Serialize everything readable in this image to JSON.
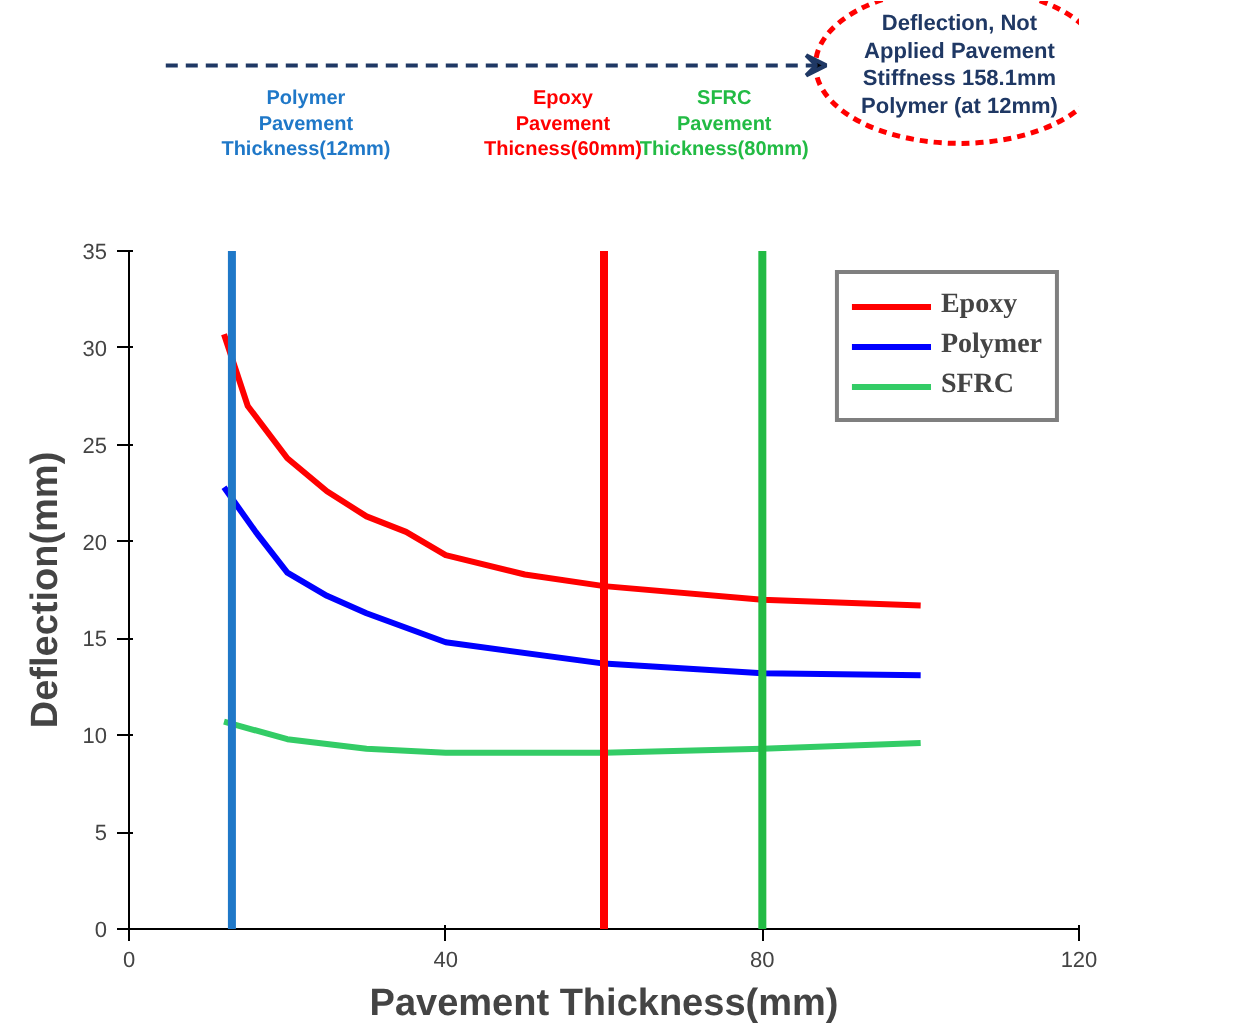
{
  "chart_data": {
    "type": "line",
    "xlabel": "Pavement Thickness(mm)",
    "ylabel": "Deflection(mm)",
    "xlim": [
      0,
      120
    ],
    "xticks": [
      0,
      40,
      80,
      120
    ],
    "ylim": [
      0,
      35
    ],
    "yticks": [
      0,
      5,
      10,
      15,
      20,
      25,
      30,
      35
    ],
    "grid": false,
    "legend": "top right",
    "marker": "none",
    "line_style": "solid",
    "series": [
      {
        "name": "Epoxy",
        "color": "#ff0000",
        "x": [
          12,
          15,
          20,
          25,
          30,
          35,
          40,
          50,
          60,
          80,
          100
        ],
        "values": [
          30.7,
          27.0,
          24.3,
          22.6,
          21.3,
          20.5,
          19.3,
          18.3,
          17.7,
          17.0,
          16.7
        ]
      },
      {
        "name": "Polymer",
        "color": "#0000ff",
        "x": [
          12,
          16,
          20,
          25,
          30,
          40,
          60,
          80,
          100
        ],
        "values": [
          22.8,
          20.5,
          18.4,
          17.2,
          16.3,
          14.8,
          13.7,
          13.2,
          13.1
        ]
      },
      {
        "name": "SFRC",
        "color": "#33cc66",
        "x": [
          12,
          20,
          30,
          40,
          60,
          80,
          100
        ],
        "values": [
          10.7,
          9.8,
          9.3,
          9.1,
          9.1,
          9.3,
          9.6
        ]
      }
    ],
    "ref_lines": [
      {
        "axis": "x",
        "value": 13,
        "label": "Polymer\nPavement\nThickness(12mm)",
        "color": "#1f78c8"
      },
      {
        "axis": "x",
        "value": 60,
        "label": "Epoxy\nPavement\nThicness(60mm)",
        "color": "#ff0000"
      },
      {
        "axis": "x",
        "value": 80,
        "label": "SFRC\nPavement\nThickness(80mm)",
        "color": "#22bb44"
      }
    ],
    "annotations": [
      "Deflection, Not\nApplied Pavement\nStiffness 158.1mm\nPolymer (at 12mm)"
    ]
  }
}
